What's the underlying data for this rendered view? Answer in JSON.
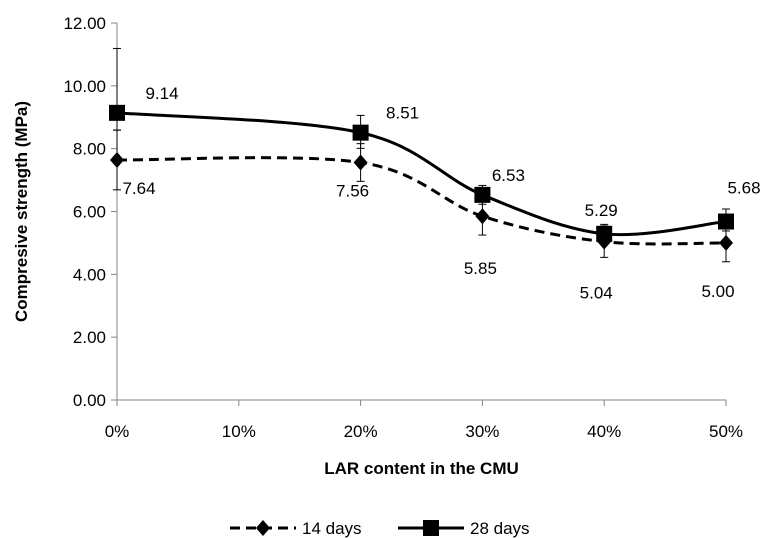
{
  "chart_data": {
    "type": "line",
    "title": "",
    "xlabel": "LAR content in the CMU",
    "ylabel": "Compresive strength (MPa)",
    "x_categories": [
      "0%",
      "10%",
      "20%",
      "30%",
      "40%",
      "50%"
    ],
    "ylim": [
      0,
      12
    ],
    "y_ticks": [
      "0.00",
      "2.00",
      "4.00",
      "6.00",
      "8.00",
      "10.00",
      "12.00"
    ],
    "grid": false,
    "legend_position": "bottom",
    "series": [
      {
        "name": "14 days",
        "line_style": "dashed",
        "marker": "diamond",
        "color": "#000000",
        "x": [
          "0%",
          "20%",
          "30%",
          "40%",
          "50%"
        ],
        "values": [
          7.64,
          7.56,
          5.85,
          5.04,
          5.0
        ],
        "labels": [
          "7.64",
          "7.56",
          "5.85",
          "5.04",
          "5.00"
        ],
        "error_low": [
          0.95,
          0.6,
          0.6,
          0.5,
          0.6
        ],
        "error_high": [
          0.95,
          0.6,
          0.6,
          0.5,
          0.6
        ]
      },
      {
        "name": "28 days",
        "line_style": "solid",
        "marker": "square",
        "color": "#000000",
        "x": [
          "0%",
          "20%",
          "30%",
          "40%",
          "50%"
        ],
        "values": [
          9.14,
          8.51,
          6.53,
          5.29,
          5.68
        ],
        "labels": [
          "9.14",
          "8.51",
          "6.53",
          "5.29",
          "5.68"
        ],
        "error_low": [
          0.55,
          0.5,
          0.3,
          0.3,
          0.3
        ],
        "error_high": [
          2.05,
          0.55,
          0.3,
          0.3,
          0.4
        ]
      }
    ]
  }
}
